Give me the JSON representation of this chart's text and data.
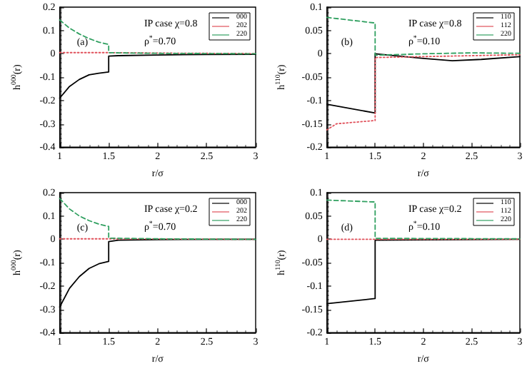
{
  "chart_data": [
    {
      "type": "line",
      "xlabel": "r/σ",
      "ylabel": "h$^{000}$(r)",
      "annotations": [
        "(a)",
        "IP case χ=0.8",
        "ρ$^{*}$=0.70"
      ],
      "xlim": [
        1,
        3
      ],
      "xticks": [
        1,
        1.5,
        2,
        2.5,
        3
      ],
      "ylim": [
        -0.4,
        0.2
      ],
      "yticks": [
        -0.4,
        -0.3,
        -0.2,
        -0.1,
        0,
        0.1,
        0.2
      ],
      "grid": false,
      "legend": "top right",
      "marker": "none",
      "series": [
        {
          "name": "000",
          "color": "#000000",
          "line_style": "solid",
          "x": [
            1,
            1.1,
            1.2,
            1.3,
            1.4,
            1.5,
            1.5,
            1.6,
            2,
            2.5,
            3
          ],
          "values": [
            -0.19,
            -0.14,
            -0.11,
            -0.09,
            -0.083,
            -0.078,
            -0.01,
            -0.008,
            -0.005,
            -0.003,
            -0.002
          ]
        },
        {
          "name": "202",
          "color": "#e0505a",
          "line_style": "dotted",
          "x": [
            1,
            1.5,
            1.5,
            2,
            3
          ],
          "values": [
            0.005,
            0.005,
            0.005,
            0.003,
            0.001
          ]
        },
        {
          "name": "220",
          "color": "#30a060",
          "line_style": "dashed",
          "x": [
            1,
            1.1,
            1.2,
            1.3,
            1.4,
            1.5,
            1.5,
            1.6,
            2,
            3
          ],
          "values": [
            0.145,
            0.11,
            0.085,
            0.065,
            0.05,
            0.04,
            0.005,
            0.004,
            0.002,
            0
          ]
        }
      ]
    },
    {
      "type": "line",
      "xlabel": "r/σ",
      "ylabel": "h$^{110}$(r)",
      "annotations": [
        "(b)",
        "IP case χ=0.8",
        "ρ$^{*}$=0.10"
      ],
      "xlim": [
        1,
        3
      ],
      "xticks": [
        1,
        1.5,
        2,
        2.5,
        3
      ],
      "ylim": [
        -0.2,
        0.1
      ],
      "yticks": [
        -0.2,
        -0.15,
        -0.1,
        -0.05,
        0,
        0.05,
        0.1
      ],
      "grid": false,
      "legend": "top right",
      "marker": "none",
      "series": [
        {
          "name": "110",
          "color": "#000000",
          "line_style": "solid",
          "x": [
            1,
            1.5,
            1.5,
            2,
            2.3,
            2.6,
            3
          ],
          "values": [
            -0.108,
            -0.127,
            0,
            -0.01,
            -0.015,
            -0.012,
            -0.006
          ]
        },
        {
          "name": "112",
          "color": "#e0505a",
          "line_style": "dotted",
          "x": [
            1,
            1.1,
            1.5,
            1.5,
            2,
            3
          ],
          "values": [
            -0.163,
            -0.15,
            -0.143,
            -0.008,
            -0.006,
            -0.002
          ]
        },
        {
          "name": "220",
          "color": "#30a060",
          "line_style": "dashed",
          "x": [
            1,
            1.5,
            1.5,
            2,
            2.5,
            3
          ],
          "values": [
            0.078,
            0.066,
            -0.003,
            0,
            0.002,
            0.001
          ]
        }
      ]
    },
    {
      "type": "line",
      "xlabel": "r/σ",
      "ylabel": "h$^{000}$(r)",
      "annotations": [
        "(c)",
        "IP case χ=0.2",
        "ρ$^{*}$=0.70"
      ],
      "xlim": [
        1,
        3
      ],
      "xticks": [
        1,
        1.5,
        2,
        2.5,
        3
      ],
      "ylim": [
        -0.4,
        0.2
      ],
      "yticks": [
        -0.4,
        -0.3,
        -0.2,
        -0.1,
        0,
        0.1,
        0.2
      ],
      "grid": false,
      "legend": "top right",
      "marker": "none",
      "series": [
        {
          "name": "000",
          "color": "#000000",
          "line_style": "solid",
          "x": [
            1,
            1.1,
            1.2,
            1.3,
            1.4,
            1.5,
            1.5,
            1.6,
            2,
            3
          ],
          "values": [
            -0.29,
            -0.21,
            -0.16,
            -0.125,
            -0.105,
            -0.095,
            -0.01,
            -0.004,
            -0.001,
            0
          ]
        },
        {
          "name": "202",
          "color": "#e0505a",
          "line_style": "dotted",
          "x": [
            1,
            1.5,
            1.5,
            3
          ],
          "values": [
            0.002,
            0.002,
            0.002,
            0
          ]
        },
        {
          "name": "220",
          "color": "#30a060",
          "line_style": "dashed",
          "x": [
            1,
            1.1,
            1.2,
            1.3,
            1.4,
            1.5,
            1.5,
            2,
            3
          ],
          "values": [
            0.175,
            0.13,
            0.1,
            0.08,
            0.065,
            0.055,
            0.005,
            0.002,
            0
          ]
        }
      ]
    },
    {
      "type": "line",
      "xlabel": "r/σ",
      "ylabel": "h$^{110}$(r)",
      "annotations": [
        "(d)",
        "IP case χ=0.2",
        "ρ$^{*}$=0.10"
      ],
      "xlim": [
        1,
        3
      ],
      "xticks": [
        1,
        1.5,
        2,
        2.5,
        3
      ],
      "ylim": [
        -0.2,
        0.1
      ],
      "yticks": [
        -0.2,
        -0.15,
        -0.1,
        -0.05,
        0,
        0.05,
        0.1
      ],
      "grid": false,
      "legend": "top right",
      "marker": "none",
      "series": [
        {
          "name": "110",
          "color": "#000000",
          "line_style": "solid",
          "x": [
            1,
            1.5,
            1.5,
            3
          ],
          "values": [
            -0.138,
            -0.127,
            -0.002,
            0
          ]
        },
        {
          "name": "112",
          "color": "#e0505a",
          "line_style": "dotted",
          "x": [
            1,
            1.5,
            1.5,
            3
          ],
          "values": [
            0,
            0,
            0,
            0
          ]
        },
        {
          "name": "220",
          "color": "#30a060",
          "line_style": "dashed",
          "x": [
            1,
            1.5,
            1.5,
            3
          ],
          "values": [
            0.084,
            0.08,
            0.002,
            0.001
          ]
        }
      ]
    }
  ]
}
